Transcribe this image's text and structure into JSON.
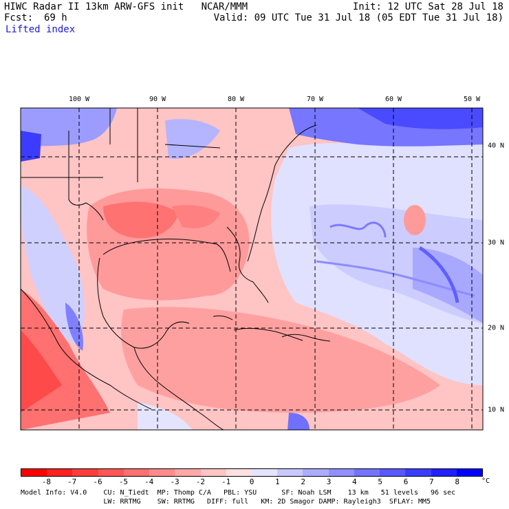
{
  "header": {
    "title": "HIWC Radar II 13km ARW-GFS init   NCAR/MMM",
    "init": "Init: 12 UTC Sat 28 Jul 18",
    "fcst_label": "Fcst:",
    "fcst_value": "69 h",
    "valid": "Valid: 09 UTC Tue 31 Jul 18 (05 EDT Tue 31 Jul 18)",
    "field": "Lifted index"
  },
  "map": {
    "lon_labels": [
      "100 W",
      "90 W",
      "80 W",
      "70 W",
      "60 W",
      "50 W"
    ],
    "lat_labels": [
      "40 N",
      "30 N",
      "20 N",
      "10 N"
    ]
  },
  "colorbar": {
    "labels": [
      "-8",
      "-7",
      "-6",
      "-5",
      "-4",
      "-3",
      "-2",
      "-1",
      "0",
      "1",
      "2",
      "3",
      "4",
      "5",
      "6",
      "7",
      "8"
    ],
    "unit": "°C",
    "colors": [
      "#ff0000",
      "#ff2020",
      "#ff3c3c",
      "#ff5656",
      "#ff7070",
      "#ff8c8c",
      "#ffa8a8",
      "#ffc4c4",
      "#ffe0e0",
      "#e4e4ff",
      "#c8c8ff",
      "#acacff",
      "#9090ff",
      "#7474ff",
      "#5858ff",
      "#3c3cff",
      "#2020ff",
      "#0000ff"
    ]
  },
  "footer": {
    "line1": "Model Info: V4.0    CU: N_Tiedt  MP: Thomp C/A   PBL: YSU      SF: Noah LSM    13 km   51 levels   96 sec",
    "line2": "                    LW: RRTMG    SW: RRTMG   DIFF: full   KM: 2D Smagor DAMP: Rayleigh3  SFLAY: MM5"
  }
}
